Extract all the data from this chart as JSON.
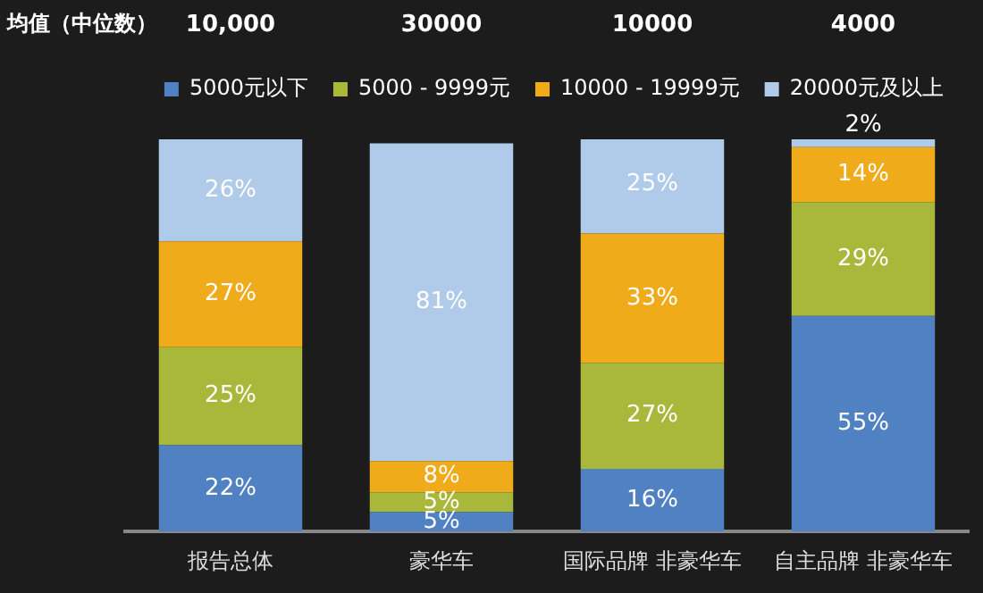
{
  "chart_data": {
    "type": "bar",
    "stacked": true,
    "legend": "top",
    "tick_labels": "x",
    "categories": [
      "报告总体",
      "豪华车",
      "国际品牌 非豪华车",
      "自主品牌 非豪华车"
    ],
    "series": [
      {
        "name": "5000元以下",
        "color": "#4f81c3",
        "values": [
          22,
          5,
          16,
          55
        ],
        "value_labels": [
          "22%",
          "5%",
          "16%",
          "55%"
        ]
      },
      {
        "name": "5000 - 9999元",
        "color": "#a9b83a",
        "values": [
          25,
          5,
          27,
          29
        ],
        "value_labels": [
          "25%",
          "5%",
          "27%",
          "29%"
        ]
      },
      {
        "name": "10000 - 19999元",
        "color": "#efab1a",
        "values": [
          27,
          8,
          33,
          14
        ],
        "value_labels": [
          "27%",
          "8%",
          "33%",
          "14%"
        ]
      },
      {
        "name": "20000元及以上",
        "color": "#b0cae9",
        "values": [
          26,
          81,
          25,
          2
        ],
        "value_labels": [
          "26%",
          "81%",
          "25%",
          "2%"
        ]
      }
    ],
    "annotations": [
      "均值（中位数）",
      "10,000",
      "30000",
      "10000",
      "4000"
    ]
  }
}
